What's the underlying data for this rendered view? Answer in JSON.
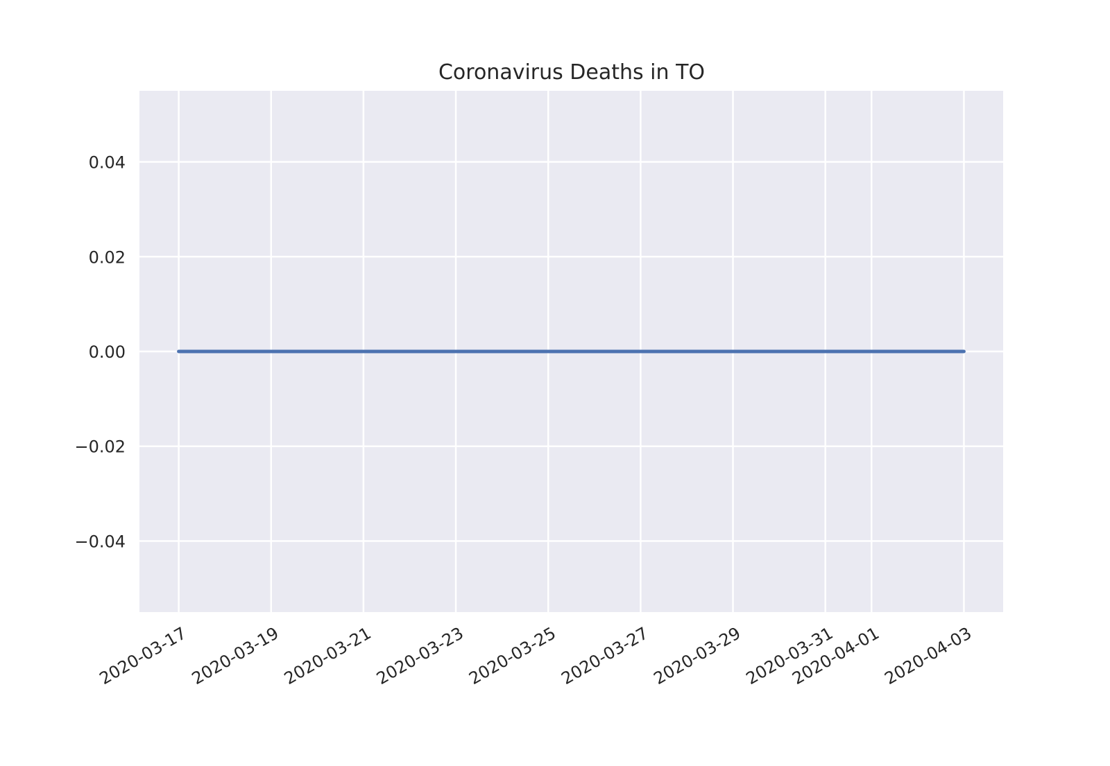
{
  "chart_data": {
    "type": "line",
    "title": "Coronavirus Deaths in TO",
    "xlabel": "",
    "ylabel": "",
    "x": [
      "2020-03-17",
      "2020-03-18",
      "2020-03-19",
      "2020-03-20",
      "2020-03-21",
      "2020-03-22",
      "2020-03-23",
      "2020-03-24",
      "2020-03-25",
      "2020-03-26",
      "2020-03-27",
      "2020-03-28",
      "2020-03-29",
      "2020-03-30",
      "2020-03-31",
      "2020-04-01",
      "2020-04-02",
      "2020-04-03"
    ],
    "series": [
      {
        "values": [
          0,
          0,
          0,
          0,
          0,
          0,
          0,
          0,
          0,
          0,
          0,
          0,
          0,
          0,
          0,
          0,
          0,
          0
        ],
        "color": "#4c72b0"
      }
    ],
    "xticks": [
      "2020-03-17",
      "2020-03-19",
      "2020-03-21",
      "2020-03-23",
      "2020-03-25",
      "2020-03-27",
      "2020-03-29",
      "2020-03-31",
      "2020-04-01",
      "2020-04-03"
    ],
    "yticks": [
      -0.04,
      -0.02,
      0.0,
      0.02,
      0.04
    ],
    "ytick_labels": [
      "−0.04",
      "−0.02",
      "0.00",
      "0.02",
      "0.04"
    ],
    "ylim": [
      -0.055,
      0.055
    ],
    "xlim": [
      "2020-03-16",
      "2020-04-03"
    ],
    "grid": true,
    "legend": "none",
    "colors": {
      "plot_background": "#eaeaf2",
      "grid": "#ffffff",
      "line": "#4c72b0"
    }
  }
}
